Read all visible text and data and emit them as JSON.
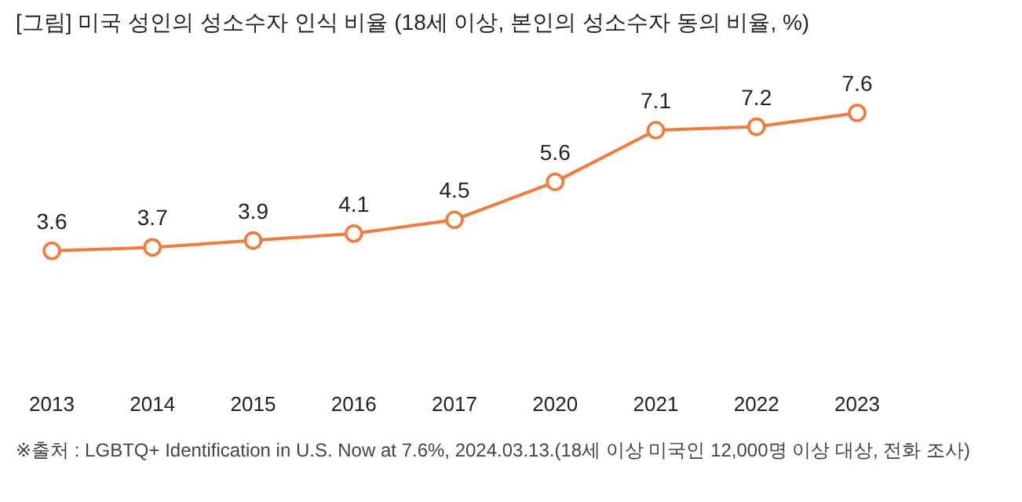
{
  "chart_data": {
    "type": "line",
    "title": "[그림] 미국 성인의 성소수자 인식 비율 (18세 이상, 본인의 성소수자 동의 비율, %)",
    "categories": [
      "2013",
      "2014",
      "2015",
      "2016",
      "2017",
      "2020",
      "2021",
      "2022",
      "2023"
    ],
    "series": [
      {
        "color": "#f47a3a",
        "values": [
          3.6,
          3.7,
          3.9,
          4.1,
          4.5,
          5.6,
          7.1,
          7.2,
          7.6
        ]
      }
    ],
    "data_labels": true,
    "marker": "circle",
    "annotations": [
      "※출처 : LGBTQ+ Identification in U.S. Now at 7.6%, 2024.03.13.(18세 이상 미국인 12,000명 이상 대상, 전화 조사)"
    ]
  }
}
